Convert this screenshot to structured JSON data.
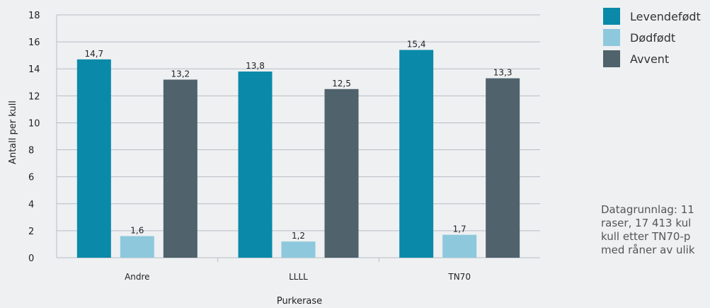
{
  "colors": {
    "background": "#eef0f2",
    "grid": "#b8bec4",
    "series": [
      "#0a8aa8",
      "#8ec8dc",
      "#50626c"
    ]
  },
  "legend": {
    "items": [
      {
        "label": "Levendefødt",
        "color": "#0a8aa8"
      },
      {
        "label": "Dødfødt",
        "color": "#8ec8dc"
      },
      {
        "label": "Avvent",
        "color": "#50626c"
      }
    ]
  },
  "note": {
    "lines": [
      "Datagrunnlag: 11",
      "raser, 17 413 kul",
      "kull etter TN70-p",
      "med råner av ulik"
    ]
  },
  "chart_data": {
    "type": "bar",
    "categories": [
      "Andre",
      "LLLL",
      "TN70"
    ],
    "series": [
      {
        "name": "Levendefødt",
        "values": [
          14.7,
          13.8,
          15.4
        ],
        "labels": [
          "14,7",
          "13,8",
          "15,4"
        ]
      },
      {
        "name": "Dødfødt",
        "values": [
          1.6,
          1.2,
          1.7
        ],
        "labels": [
          "1,6",
          "1,2",
          "1,7"
        ]
      },
      {
        "name": "Avvent",
        "values": [
          13.2,
          12.5,
          13.3
        ],
        "labels": [
          "13,2",
          "12,5",
          "13,3"
        ]
      }
    ],
    "xlabel": "Purkerase",
    "ylabel": "Antall per kull",
    "ylim": [
      0,
      18
    ],
    "yticks": [
      0,
      2,
      4,
      6,
      8,
      10,
      12,
      14,
      16,
      18
    ],
    "grid": true,
    "legend_position": "right"
  }
}
